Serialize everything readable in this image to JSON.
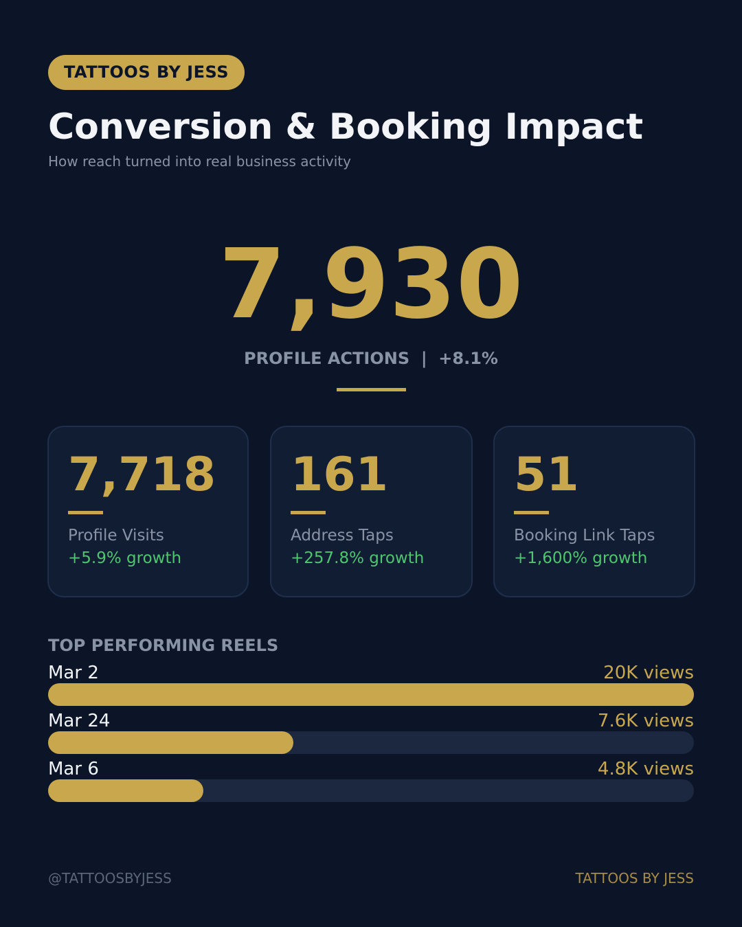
{
  "brand_pill": "TATTOOS BY JESS",
  "title": "Conversion & Booking Impact",
  "subtitle": "How reach turned into real business activity",
  "hero": {
    "value": "7,930",
    "label": "PROFILE ACTIONS  |  +8.1%"
  },
  "cards": [
    {
      "value": "7,718",
      "label": "Profile Visits",
      "growth": "+5.9% growth"
    },
    {
      "value": "161",
      "label": "Address Taps",
      "growth": "+257.8% growth"
    },
    {
      "value": "51",
      "label": "Booking Link Taps",
      "growth": "+1,600% growth"
    }
  ],
  "reels_title": "TOP PERFORMING REELS",
  "reels": [
    {
      "date": "Mar 2",
      "views": "20K views",
      "views_value": 20000
    },
    {
      "date": "Mar 24",
      "views": "7.6K views",
      "views_value": 7600
    },
    {
      "date": "Mar 6",
      "views": "4.8K views",
      "views_value": 4800
    }
  ],
  "footer": {
    "handle": "@TATTOOSBYJESS",
    "brand": "TATTOOS BY JESS"
  },
  "colors": {
    "background": "#0b1527",
    "accent": "#c9a74c",
    "growth": "#4fc56f",
    "muted": "#8993a6"
  }
}
